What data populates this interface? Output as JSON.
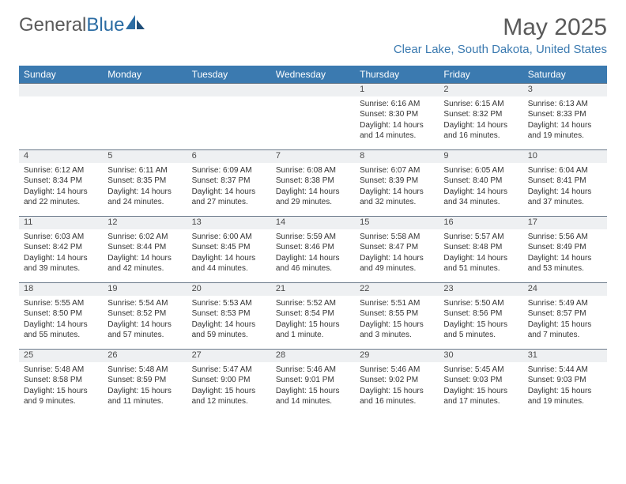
{
  "brand": {
    "part1": "General",
    "part2": "Blue"
  },
  "title": "May 2025",
  "location": "Clear Lake, South Dakota, United States",
  "header_bg": "#3b7ab0",
  "daynum_bg": "#eef0f2",
  "border_color": "#6b7a8a",
  "text_color": "#333333",
  "columns": [
    "Sunday",
    "Monday",
    "Tuesday",
    "Wednesday",
    "Thursday",
    "Friday",
    "Saturday"
  ],
  "weeks": [
    [
      {
        "n": "",
        "lines": []
      },
      {
        "n": "",
        "lines": []
      },
      {
        "n": "",
        "lines": []
      },
      {
        "n": "",
        "lines": []
      },
      {
        "n": "1",
        "lines": [
          "Sunrise: 6:16 AM",
          "Sunset: 8:30 PM",
          "Daylight: 14 hours",
          "and 14 minutes."
        ]
      },
      {
        "n": "2",
        "lines": [
          "Sunrise: 6:15 AM",
          "Sunset: 8:32 PM",
          "Daylight: 14 hours",
          "and 16 minutes."
        ]
      },
      {
        "n": "3",
        "lines": [
          "Sunrise: 6:13 AM",
          "Sunset: 8:33 PM",
          "Daylight: 14 hours",
          "and 19 minutes."
        ]
      }
    ],
    [
      {
        "n": "4",
        "lines": [
          "Sunrise: 6:12 AM",
          "Sunset: 8:34 PM",
          "Daylight: 14 hours",
          "and 22 minutes."
        ]
      },
      {
        "n": "5",
        "lines": [
          "Sunrise: 6:11 AM",
          "Sunset: 8:35 PM",
          "Daylight: 14 hours",
          "and 24 minutes."
        ]
      },
      {
        "n": "6",
        "lines": [
          "Sunrise: 6:09 AM",
          "Sunset: 8:37 PM",
          "Daylight: 14 hours",
          "and 27 minutes."
        ]
      },
      {
        "n": "7",
        "lines": [
          "Sunrise: 6:08 AM",
          "Sunset: 8:38 PM",
          "Daylight: 14 hours",
          "and 29 minutes."
        ]
      },
      {
        "n": "8",
        "lines": [
          "Sunrise: 6:07 AM",
          "Sunset: 8:39 PM",
          "Daylight: 14 hours",
          "and 32 minutes."
        ]
      },
      {
        "n": "9",
        "lines": [
          "Sunrise: 6:05 AM",
          "Sunset: 8:40 PM",
          "Daylight: 14 hours",
          "and 34 minutes."
        ]
      },
      {
        "n": "10",
        "lines": [
          "Sunrise: 6:04 AM",
          "Sunset: 8:41 PM",
          "Daylight: 14 hours",
          "and 37 minutes."
        ]
      }
    ],
    [
      {
        "n": "11",
        "lines": [
          "Sunrise: 6:03 AM",
          "Sunset: 8:42 PM",
          "Daylight: 14 hours",
          "and 39 minutes."
        ]
      },
      {
        "n": "12",
        "lines": [
          "Sunrise: 6:02 AM",
          "Sunset: 8:44 PM",
          "Daylight: 14 hours",
          "and 42 minutes."
        ]
      },
      {
        "n": "13",
        "lines": [
          "Sunrise: 6:00 AM",
          "Sunset: 8:45 PM",
          "Daylight: 14 hours",
          "and 44 minutes."
        ]
      },
      {
        "n": "14",
        "lines": [
          "Sunrise: 5:59 AM",
          "Sunset: 8:46 PM",
          "Daylight: 14 hours",
          "and 46 minutes."
        ]
      },
      {
        "n": "15",
        "lines": [
          "Sunrise: 5:58 AM",
          "Sunset: 8:47 PM",
          "Daylight: 14 hours",
          "and 49 minutes."
        ]
      },
      {
        "n": "16",
        "lines": [
          "Sunrise: 5:57 AM",
          "Sunset: 8:48 PM",
          "Daylight: 14 hours",
          "and 51 minutes."
        ]
      },
      {
        "n": "17",
        "lines": [
          "Sunrise: 5:56 AM",
          "Sunset: 8:49 PM",
          "Daylight: 14 hours",
          "and 53 minutes."
        ]
      }
    ],
    [
      {
        "n": "18",
        "lines": [
          "Sunrise: 5:55 AM",
          "Sunset: 8:50 PM",
          "Daylight: 14 hours",
          "and 55 minutes."
        ]
      },
      {
        "n": "19",
        "lines": [
          "Sunrise: 5:54 AM",
          "Sunset: 8:52 PM",
          "Daylight: 14 hours",
          "and 57 minutes."
        ]
      },
      {
        "n": "20",
        "lines": [
          "Sunrise: 5:53 AM",
          "Sunset: 8:53 PM",
          "Daylight: 14 hours",
          "and 59 minutes."
        ]
      },
      {
        "n": "21",
        "lines": [
          "Sunrise: 5:52 AM",
          "Sunset: 8:54 PM",
          "Daylight: 15 hours",
          "and 1 minute."
        ]
      },
      {
        "n": "22",
        "lines": [
          "Sunrise: 5:51 AM",
          "Sunset: 8:55 PM",
          "Daylight: 15 hours",
          "and 3 minutes."
        ]
      },
      {
        "n": "23",
        "lines": [
          "Sunrise: 5:50 AM",
          "Sunset: 8:56 PM",
          "Daylight: 15 hours",
          "and 5 minutes."
        ]
      },
      {
        "n": "24",
        "lines": [
          "Sunrise: 5:49 AM",
          "Sunset: 8:57 PM",
          "Daylight: 15 hours",
          "and 7 minutes."
        ]
      }
    ],
    [
      {
        "n": "25",
        "lines": [
          "Sunrise: 5:48 AM",
          "Sunset: 8:58 PM",
          "Daylight: 15 hours",
          "and 9 minutes."
        ]
      },
      {
        "n": "26",
        "lines": [
          "Sunrise: 5:48 AM",
          "Sunset: 8:59 PM",
          "Daylight: 15 hours",
          "and 11 minutes."
        ]
      },
      {
        "n": "27",
        "lines": [
          "Sunrise: 5:47 AM",
          "Sunset: 9:00 PM",
          "Daylight: 15 hours",
          "and 12 minutes."
        ]
      },
      {
        "n": "28",
        "lines": [
          "Sunrise: 5:46 AM",
          "Sunset: 9:01 PM",
          "Daylight: 15 hours",
          "and 14 minutes."
        ]
      },
      {
        "n": "29",
        "lines": [
          "Sunrise: 5:46 AM",
          "Sunset: 9:02 PM",
          "Daylight: 15 hours",
          "and 16 minutes."
        ]
      },
      {
        "n": "30",
        "lines": [
          "Sunrise: 5:45 AM",
          "Sunset: 9:03 PM",
          "Daylight: 15 hours",
          "and 17 minutes."
        ]
      },
      {
        "n": "31",
        "lines": [
          "Sunrise: 5:44 AM",
          "Sunset: 9:03 PM",
          "Daylight: 15 hours",
          "and 19 minutes."
        ]
      }
    ]
  ]
}
